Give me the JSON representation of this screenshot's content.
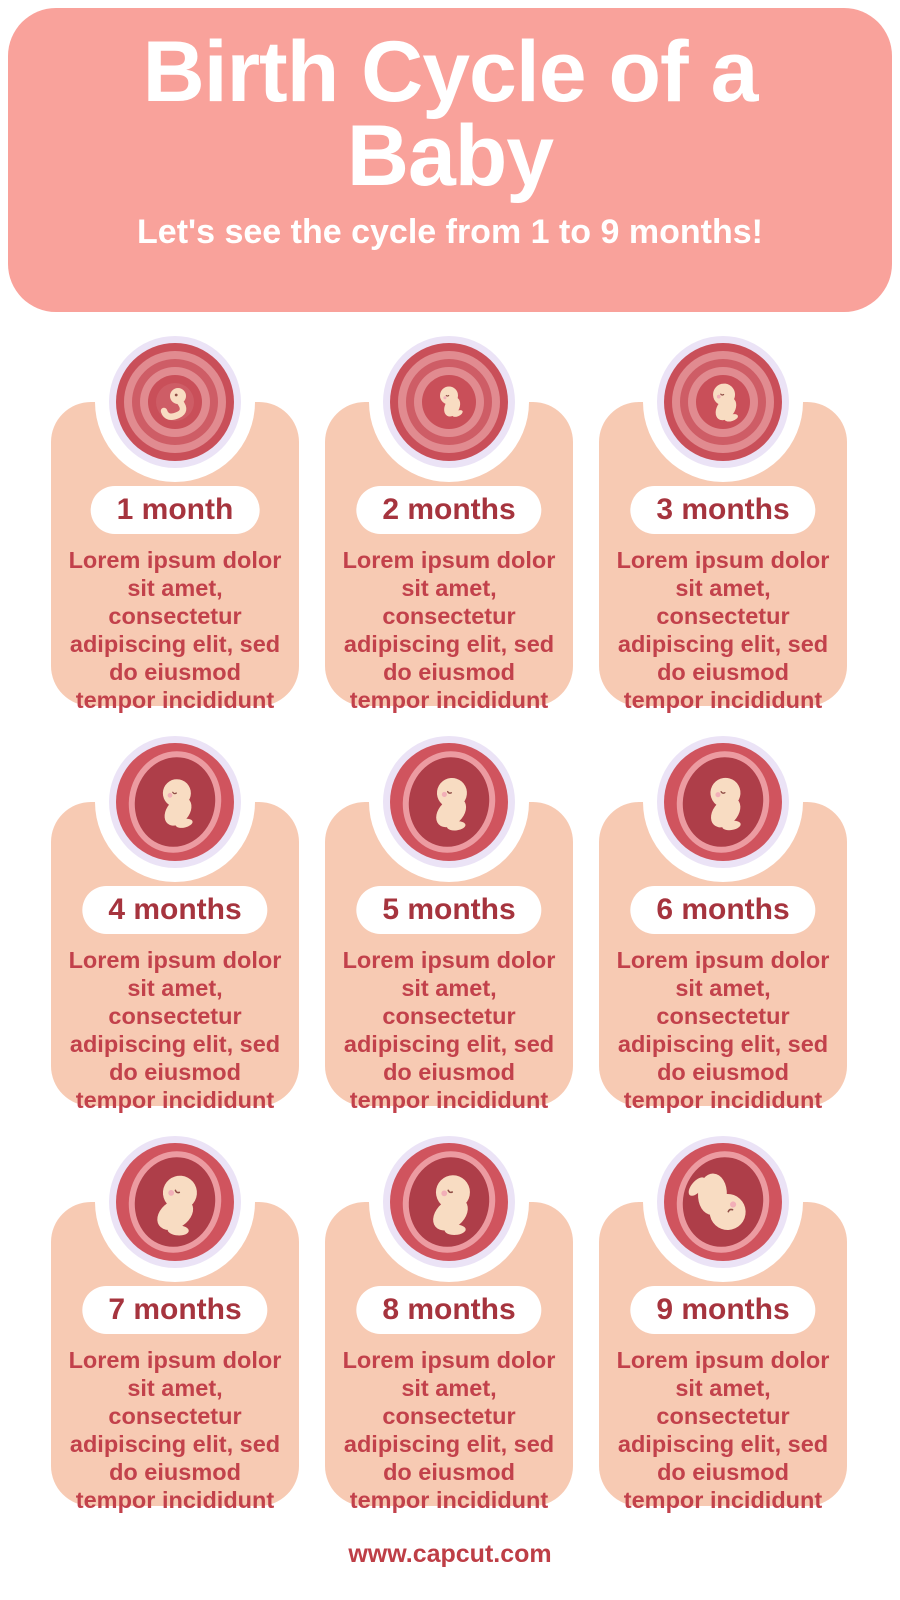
{
  "header": {
    "title": "Birth Cycle of a Baby",
    "subtitle": "Let's see the cycle from 1 to 9 months!",
    "background": "#F9A29B",
    "text_color": "#FFFFFF"
  },
  "cards": [
    {
      "month": 1,
      "label": "1 month",
      "style": "swirl",
      "head_radius": 8,
      "rotation": 0
    },
    {
      "month": 2,
      "label": "2 months",
      "style": "swirl",
      "head_radius": 9,
      "rotation": 0
    },
    {
      "month": 3,
      "label": "3 months",
      "style": "swirl",
      "head_radius": 11,
      "rotation": 8
    },
    {
      "month": 4,
      "label": "4 months",
      "style": "open",
      "head_radius": 14,
      "rotation": 12
    },
    {
      "month": 5,
      "label": "5 months",
      "style": "open",
      "head_radius": 15,
      "rotation": 18
    },
    {
      "month": 6,
      "label": "6 months",
      "style": "open",
      "head_radius": 15,
      "rotation": 15
    },
    {
      "month": 7,
      "label": "7 months",
      "style": "open",
      "head_radius": 17,
      "rotation": 28
    },
    {
      "month": 8,
      "label": "8 months",
      "style": "open",
      "head_radius": 17,
      "rotation": 22
    },
    {
      "month": 9,
      "label": "9 months",
      "style": "open",
      "head_radius": 18,
      "rotation": 155
    }
  ],
  "card_body_lines": [
    "Lorem ipsum dolor",
    "sit amet,",
    "consectetur",
    "adipiscing elit, sed",
    "do eiusmod",
    "tempor incididunt"
  ],
  "colors": {
    "card_background": "#F7CAB3",
    "pill_background": "#FFFFFF",
    "pill_text": "#A6343E",
    "body_text": "#C2414B",
    "halo_ring": "#EBE3F6",
    "womb_outer": "#C94F59",
    "womb_mid": "#E18B90",
    "womb_deep": "#CE5D66",
    "womb_open_outer": "#D0545E",
    "womb_lining": "#EC9BA1",
    "womb_interior": "#AE3E49",
    "fetus_skin": "#F8DCC2",
    "fetus_blush": "#F2AFB8",
    "fetus_face": "#8F4D46"
  },
  "footer": {
    "text": "www.capcut.com",
    "color": "#BE3E46"
  }
}
